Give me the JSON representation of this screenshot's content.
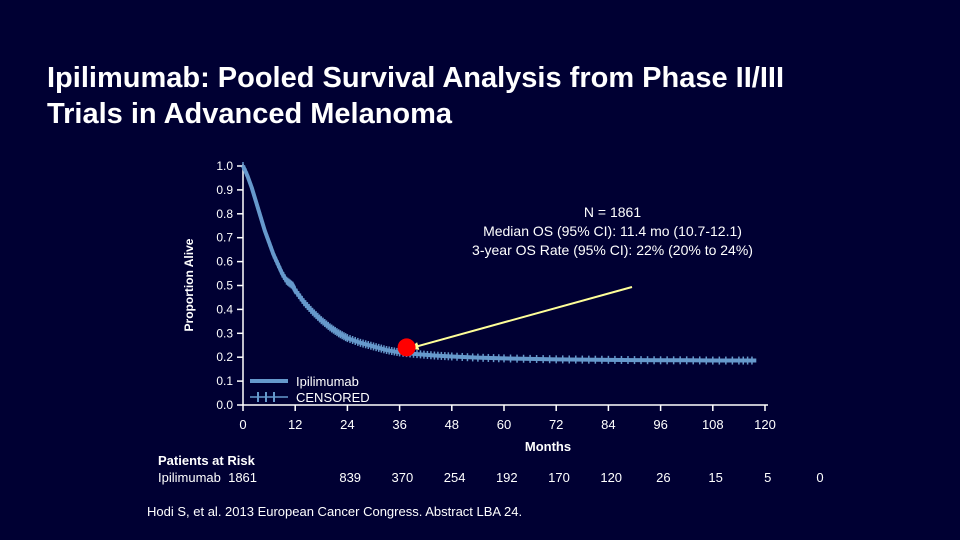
{
  "title_lines": [
    "Ipilimumab: Pooled Survival Analysis from Phase II/III",
    "Trials in Advanced Melanoma"
  ],
  "annotation_lines": [
    "N = 1861",
    "Median OS (95% CI): 11.4 mo (10.7-12.1)",
    "3-year OS Rate (95% CI): 22% (20% to 24%)"
  ],
  "risk_table": {
    "title": "Patients at Risk",
    "row_label": "Ipilimumab",
    "counts": [
      "1861",
      "839",
      "370",
      "254",
      "192",
      "170",
      "120",
      "26",
      "15",
      "5",
      "0"
    ]
  },
  "footnote": "Hodi S, et al. 2013 European Cancer Congress. Abstract LBA 24.",
  "colors": {
    "background": "#000033",
    "curve": "#6699cc",
    "marker": "#ff0000",
    "arrow": "#ffff99",
    "text": "#ffffff"
  },
  "chart_data": {
    "type": "line",
    "xlabel": "Months",
    "ylabel": "Proportion Alive",
    "xlim": [
      0,
      120
    ],
    "ylim": [
      0,
      1.0
    ],
    "x_ticks": [
      "0",
      "12",
      "24",
      "36",
      "48",
      "60",
      "72",
      "84",
      "96",
      "108",
      "120"
    ],
    "y_ticks": [
      "0.0",
      "0.1",
      "0.2",
      "0.3",
      "0.4",
      "0.5",
      "0.6",
      "0.7",
      "0.8",
      "0.9",
      "1.0"
    ],
    "legend": {
      "placement": "bottom-left",
      "entries": [
        {
          "label": "Ipilimumab",
          "style": "line"
        },
        {
          "label": "CENSORED",
          "style": "censor-marks"
        }
      ]
    },
    "series": [
      {
        "name": "Ipilimumab",
        "x": [
          0,
          1,
          2,
          3,
          4,
          5,
          6,
          7,
          8,
          9,
          10,
          11.4,
          12,
          14,
          16,
          18,
          20,
          22,
          24,
          27,
          30,
          33,
          36,
          40,
          44,
          48,
          54,
          60,
          66,
          72,
          78,
          84,
          90,
          96,
          102,
          108,
          114,
          118
        ],
        "y": [
          1.0,
          0.96,
          0.91,
          0.85,
          0.79,
          0.73,
          0.68,
          0.63,
          0.59,
          0.55,
          0.52,
          0.5,
          0.48,
          0.43,
          0.39,
          0.355,
          0.325,
          0.3,
          0.28,
          0.26,
          0.245,
          0.23,
          0.22,
          0.213,
          0.207,
          0.203,
          0.198,
          0.195,
          0.193,
          0.191,
          0.19,
          0.189,
          0.188,
          0.187,
          0.187,
          0.186,
          0.186,
          0.186
        ]
      }
    ],
    "highlight_point": {
      "x": 36,
      "y": 0.22
    }
  }
}
